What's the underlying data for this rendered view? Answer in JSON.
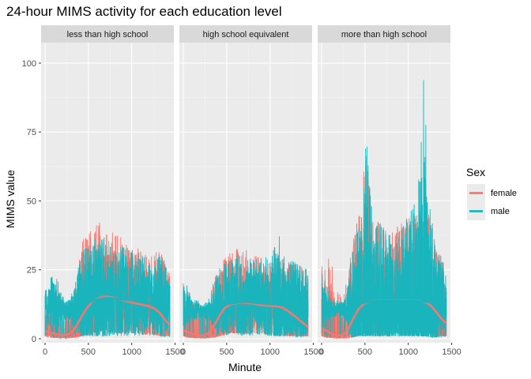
{
  "chart_data": {
    "type": "line",
    "title": "24-hour MIMS activity for each education level",
    "xlabel": "Minute",
    "ylabel": "MIMS value",
    "xlim": [
      0,
      1440
    ],
    "ylim": [
      0,
      106
    ],
    "x_ticks": [
      0,
      500,
      1000,
      1500
    ],
    "x_tick_labels": [
      "0",
      "500",
      "1000",
      "1500"
    ],
    "y_ticks": [
      0,
      25,
      50,
      75,
      100
    ],
    "y_tick_labels": [
      "0",
      "25",
      "50",
      "75",
      "100"
    ],
    "grid": true,
    "legend": {
      "title": "Sex",
      "position": "right",
      "entries": [
        {
          "name": "female",
          "color": "#F8766D"
        },
        {
          "name": "male",
          "color": "#1AB5BC"
        }
      ]
    },
    "panels": [
      {
        "label": "less than high school",
        "series": [
          {
            "name": "female",
            "color": "#F8766D",
            "envelope_x": [
              0,
              60,
              120,
              180,
              240,
              300,
              360,
              420,
              480,
              540,
              600,
              660,
              720,
              780,
              840,
              900,
              960,
              1020,
              1080,
              1140,
              1200,
              1260,
              1320,
              1380,
              1440
            ],
            "envelope_max": [
              14,
              13,
              12,
              11,
              10,
              12,
              20,
              36,
              38,
              40,
              42,
              43,
              42,
              40,
              38,
              36,
              34,
              33,
              33,
              32,
              30,
              31,
              33,
              30,
              24
            ],
            "envelope_min": [
              1,
              0.5,
              0.3,
              0.2,
              0.2,
              0.3,
              0.5,
              1,
              1.5,
              2,
              3,
              3,
              3,
              2.5,
              2,
              2,
              2,
              2,
              2,
              1.5,
              1.5,
              1.5,
              1,
              1,
              1
            ],
            "smooth_x": [
              0,
              60,
              120,
              180,
              240,
              300,
              360,
              420,
              480,
              540,
              600,
              660,
              720,
              780,
              840,
              900,
              960,
              1020,
              1080,
              1140,
              1200,
              1260,
              1320,
              1380,
              1440
            ],
            "smooth_y": [
              2.8,
              2.3,
              1.8,
              1.4,
              1.3,
              2.0,
              4.5,
              8.0,
              11.0,
              13.3,
              14.5,
              15.2,
              15.3,
              15.0,
              14.6,
              14.0,
              13.4,
              13.0,
              12.6,
              12.2,
              11.8,
              11.0,
              9.5,
              7.0,
              5.0
            ]
          },
          {
            "name": "male",
            "color": "#1AB5BC",
            "envelope_x": [
              0,
              60,
              120,
              180,
              240,
              300,
              360,
              420,
              480,
              540,
              600,
              660,
              720,
              780,
              840,
              900,
              960,
              1020,
              1080,
              1140,
              1200,
              1260,
              1320,
              1380,
              1440
            ],
            "envelope_max": [
              20,
              22,
              25,
              17,
              15,
              16,
              24,
              32,
              34,
              35,
              37,
              38,
              36,
              35,
              34,
              34,
              33,
              32,
              31,
              30,
              28,
              28,
              30,
              30,
              23
            ],
            "envelope_min": [
              0.5,
              0.3,
              0.2,
              0.2,
              0.2,
              0.3,
              0.5,
              1,
              1,
              1,
              1,
              1,
              1,
              1,
              1,
              1,
              1,
              1,
              1,
              1,
              1,
              0.5,
              0.5,
              0.5,
              0.5
            ],
            "smooth_x": [
              0,
              60,
              120,
              180,
              240,
              300,
              360,
              420,
              480,
              540,
              600,
              660,
              720,
              780,
              840,
              900,
              960,
              1020,
              1080,
              1140,
              1200,
              1260,
              1320,
              1380,
              1440
            ],
            "smooth_y": [
              12.0,
              11.5,
              11.0,
              10.5,
              10.2,
              10.5,
              11.0,
              11.8,
              12.8,
              13.6,
              14.2,
              14.6,
              14.8,
              14.7,
              14.5,
              14.2,
              14.0,
              13.8,
              13.6,
              13.4,
              13.2,
              13.0,
              12.8,
              12.5,
              12.2
            ]
          }
        ]
      },
      {
        "label": "high school equivalent",
        "series": [
          {
            "name": "female",
            "color": "#F8766D",
            "envelope_x": [
              0,
              60,
              120,
              180,
              240,
              300,
              360,
              420,
              480,
              540,
              600,
              660,
              720,
              780,
              840,
              900,
              960,
              1020,
              1080,
              1140,
              1200,
              1260,
              1320,
              1380,
              1440
            ],
            "envelope_max": [
              29,
              18,
              13,
              12,
              12,
              14,
              22,
              26,
              30,
              32,
              34,
              33,
              33,
              31,
              30,
              30,
              29,
              28,
              30,
              29,
              28,
              28,
              27,
              26,
              25
            ],
            "envelope_min": [
              1,
              0.5,
              0.3,
              0.2,
              0.2,
              0.3,
              0.5,
              1,
              1.5,
              2,
              2,
              2,
              2,
              2,
              2,
              2,
              1.5,
              1.5,
              1.5,
              1.5,
              1,
              1,
              1,
              1,
              1
            ],
            "smooth_x": [
              0,
              60,
              120,
              180,
              240,
              300,
              360,
              420,
              480,
              540,
              600,
              660,
              720,
              780,
              840,
              900,
              960,
              1020,
              1080,
              1140,
              1200,
              1260,
              1320,
              1380,
              1440
            ],
            "smooth_y": [
              3.0,
              2.3,
              1.6,
              1.2,
              1.2,
              2.2,
              5.0,
              8.5,
              11.2,
              12.4,
              12.8,
              13.0,
              13.0,
              12.8,
              12.5,
              12.2,
              12.0,
              11.9,
              11.8,
              11.3,
              10.2,
              8.8,
              7.3,
              5.7,
              4.2
            ]
          },
          {
            "name": "male",
            "color": "#1AB5BC",
            "envelope_x": [
              0,
              60,
              120,
              180,
              240,
              300,
              360,
              420,
              480,
              540,
              600,
              660,
              720,
              780,
              840,
              900,
              960,
              1020,
              1080,
              1140,
              1200,
              1260,
              1320,
              1380,
              1440
            ],
            "envelope_max": [
              25,
              17,
              15,
              14,
              13,
              15,
              22,
              26,
              28,
              29,
              30,
              31,
              30,
              30,
              29,
              29,
              30,
              31,
              42,
              32,
              30,
              29,
              28,
              27,
              25
            ],
            "envelope_min": [
              0.5,
              0.3,
              0.2,
              0.2,
              0.2,
              0.3,
              0.5,
              1,
              1,
              1,
              1,
              1,
              1,
              1,
              1,
              1,
              1,
              1,
              1,
              1,
              1,
              0.5,
              0.5,
              0.5,
              0.5
            ],
            "smooth_x": [
              0,
              60,
              120,
              180,
              240,
              300,
              360,
              420,
              480,
              540,
              600,
              660,
              720,
              780,
              840,
              900,
              960,
              1020,
              1080,
              1140,
              1200,
              1260,
              1320,
              1380,
              1440
            ],
            "smooth_y": [
              11.0,
              10.5,
              10.0,
              9.8,
              9.6,
              9.8,
              10.5,
              11.5,
              12.3,
              12.8,
              13.0,
              13.2,
              13.3,
              13.2,
              13.0,
              12.8,
              12.6,
              12.5,
              12.4,
              12.2,
              12.0,
              11.8,
              11.5,
              11.3,
              11.0
            ]
          }
        ]
      },
      {
        "label": "more than high school",
        "series": [
          {
            "name": "female",
            "color": "#F8766D",
            "envelope_x": [
              0,
              60,
              120,
              180,
              240,
              300,
              360,
              420,
              480,
              500,
              520,
              560,
              600,
              660,
              720,
              780,
              840,
              900,
              960,
              1020,
              1080,
              1140,
              1170,
              1200,
              1260,
              1320,
              1380,
              1440
            ],
            "envelope_max": [
              26,
              30,
              28,
              18,
              15,
              22,
              36,
              48,
              58,
              68,
              71,
              50,
              45,
              43,
              40,
              38,
              40,
              42,
              45,
              44,
              46,
              52,
              60,
              58,
              40,
              32,
              30,
              25
            ],
            "envelope_min": [
              1,
              0.5,
              0.3,
              0.2,
              0.2,
              0.3,
              0.5,
              1,
              1.5,
              2,
              2,
              2,
              2,
              2,
              2,
              2,
              2,
              2,
              2,
              2,
              2,
              2,
              2,
              2,
              1.5,
              1,
              1,
              1
            ],
            "smooth_x": [
              0,
              60,
              120,
              180,
              240,
              300,
              360,
              420,
              480,
              540,
              600,
              660,
              720,
              780,
              840,
              900,
              960,
              1020,
              1080,
              1140,
              1200,
              1260,
              1320,
              1380,
              1440
            ],
            "smooth_y": [
              3.8,
              2.8,
              1.8,
              1.2,
              1.3,
              3.0,
              7.0,
              10.5,
              12.5,
              13.4,
              13.7,
              13.8,
              13.9,
              13.9,
              13.9,
              13.9,
              13.9,
              13.9,
              13.9,
              13.8,
              13.3,
              12.0,
              9.8,
              7.3,
              5.5
            ]
          },
          {
            "name": "male",
            "color": "#1AB5BC",
            "envelope_x": [
              0,
              60,
              120,
              180,
              240,
              300,
              360,
              420,
              480,
              500,
              520,
              560,
              600,
              660,
              720,
              780,
              840,
              900,
              960,
              1020,
              1080,
              1140,
              1160,
              1180,
              1200,
              1260,
              1320,
              1380,
              1440
            ],
            "envelope_max": [
              25,
              20,
              16,
              14,
              14,
              20,
              34,
              45,
              55,
              72,
              74,
              55,
              46,
              45,
              42,
              40,
              38,
              40,
              44,
              46,
              50,
              62,
              85,
              104,
              80,
              45,
              35,
              30,
              23
            ],
            "envelope_min": [
              0.5,
              0.3,
              0.2,
              0.2,
              0.2,
              0.3,
              0.5,
              1,
              1,
              1,
              1,
              1,
              1,
              1,
              1,
              1,
              1,
              1,
              1,
              1,
              1,
              1,
              1,
              1,
              1,
              0.5,
              0.5,
              0.5,
              0.5
            ],
            "smooth_x": [
              0,
              60,
              120,
              180,
              240,
              300,
              360,
              420,
              480,
              540,
              600,
              660,
              720,
              780,
              840,
              900,
              960,
              1020,
              1080,
              1140,
              1200,
              1260,
              1320,
              1380,
              1440
            ],
            "smooth_y": [
              12.0,
              11.5,
              11.0,
              10.5,
              10.5,
              11.0,
              11.8,
              12.5,
              13.0,
              13.4,
              13.6,
              13.7,
              13.8,
              13.8,
              13.8,
              13.8,
              13.8,
              13.8,
              13.8,
              13.7,
              13.5,
              13.2,
              12.8,
              12.5,
              12.2
            ]
          }
        ]
      }
    ]
  }
}
